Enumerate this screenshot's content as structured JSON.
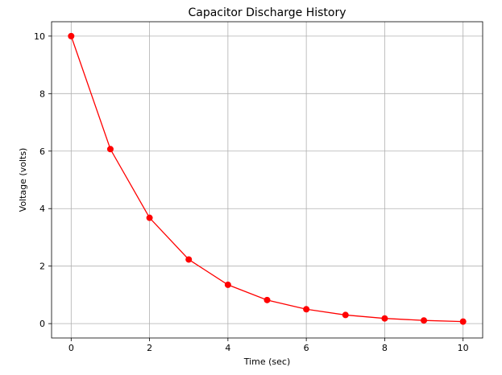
{
  "chart_data": {
    "type": "line",
    "title": "Capacitor Discharge History",
    "xlabel": "Time (sec)",
    "ylabel": "Voltage (volts)",
    "xlim": [
      -0.5,
      10.5
    ],
    "ylim": [
      -0.5,
      10.5
    ],
    "xticks": [
      0,
      2,
      4,
      6,
      8,
      10
    ],
    "yticks": [
      0,
      2,
      4,
      6,
      8,
      10
    ],
    "grid": true,
    "series": [
      {
        "color": "#ff0000",
        "marker": "circle",
        "x": [
          0,
          1,
          2,
          3,
          4,
          5,
          6,
          7,
          8,
          9,
          10
        ],
        "y": [
          10.0,
          6.07,
          3.68,
          2.23,
          1.35,
          0.82,
          0.5,
          0.3,
          0.18,
          0.11,
          0.07
        ]
      }
    ]
  }
}
